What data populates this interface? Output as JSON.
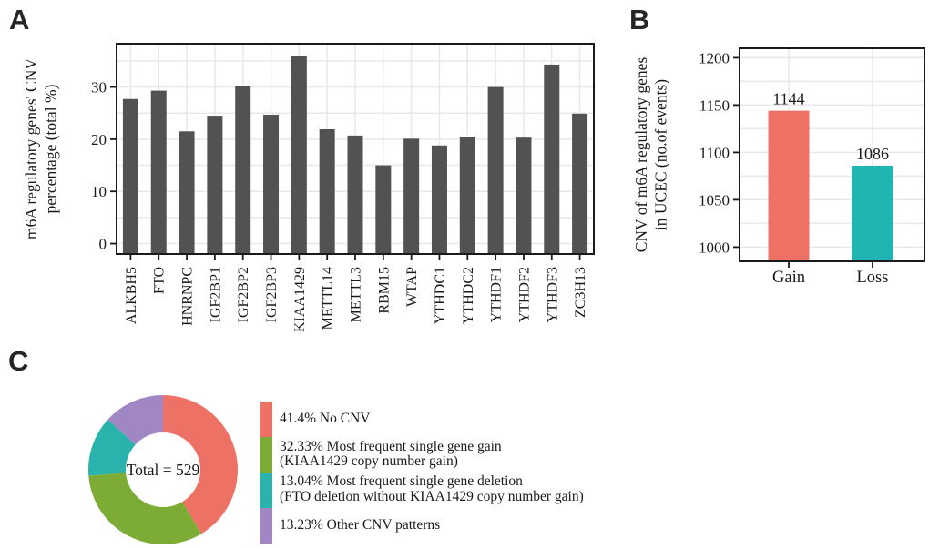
{
  "panels": {
    "a": {
      "letter": "A"
    },
    "b": {
      "letter": "B"
    },
    "c": {
      "letter": "C"
    }
  },
  "chart_data": [
    {
      "id": "A",
      "type": "bar",
      "ylabel_lines": [
        "m6A regulatory genes' CNV",
        "percentage (total %)"
      ],
      "categories": [
        "ALKBH5",
        "FTO",
        "HNRNPC",
        "IGF2BP1",
        "IGF2BP2",
        "IGF2BP3",
        "KIAA1429",
        "METTL14",
        "METTL3",
        "RBM15",
        "WTAP",
        "YTHDC1",
        "YTHDC2",
        "YTHDF1",
        "YTHDF2",
        "YTHDF3",
        "ZC3H13"
      ],
      "values": [
        27.7,
        29.3,
        21.5,
        24.5,
        30.2,
        24.7,
        36.0,
        21.9,
        20.7,
        15.0,
        20.1,
        18.8,
        20.5,
        30.0,
        20.3,
        34.3,
        24.9
      ],
      "yticks": [
        0,
        10,
        20,
        30
      ],
      "ylim": [
        -2,
        38.3
      ],
      "grid_step": 5,
      "bar_color": "#525252",
      "grid_on": true
    },
    {
      "id": "B",
      "type": "bar",
      "ylabel_lines": [
        "CNV of m6A regulatory genes",
        "in UCEC (no.of events)"
      ],
      "categories": [
        "Gain",
        "Loss"
      ],
      "values": [
        1144,
        1086
      ],
      "value_labels": [
        "1144",
        "1086"
      ],
      "colors": [
        "#ED7265",
        "#1FB5B2"
      ],
      "yticks": [
        1000,
        1050,
        1100,
        1150,
        1200
      ],
      "ylim": [
        985,
        1210
      ],
      "grid_step": 25,
      "grid_on": true
    },
    {
      "id": "C",
      "type": "donut",
      "center_label": "Total = 529",
      "total": 529,
      "slices": [
        {
          "pct": 41.4,
          "color": "#ED7265",
          "legend_lines": [
            "41.4% No CNV"
          ]
        },
        {
          "pct": 32.33,
          "color": "#7CAC35",
          "legend_lines": [
            "32.33% Most frequent single gene gain",
            "(KIAA1429 copy number gain)"
          ]
        },
        {
          "pct": 13.04,
          "color": "#29B3AC",
          "legend_lines": [
            "13.04% Most frequent single gene deletion",
            "(FTO deletion without KIAA1429 copy number gain)"
          ]
        },
        {
          "pct": 13.23,
          "color": "#A186C4",
          "legend_lines": [
            "13.23% Other CNV patterns"
          ]
        }
      ],
      "legend_position": "right"
    }
  ],
  "style_colors": {
    "axis": "#1a1a1a",
    "grid": "#e8e8e8",
    "text": "#1a1a1a"
  }
}
